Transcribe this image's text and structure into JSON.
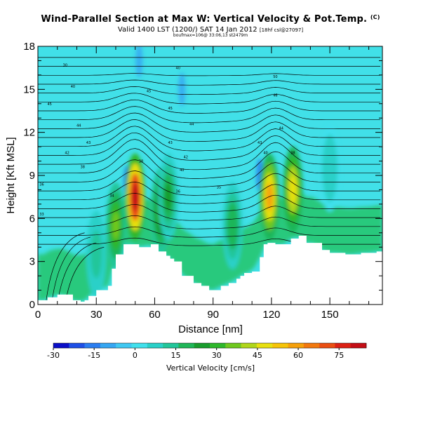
{
  "header": {
    "title": "Wind-Parallel Section at Max W: Vertical Velocity & Pot.Temp.",
    "title_mark": "(C)",
    "subtitle": "Valid 1400 LST (1200/) SAT 14 Jan 2012",
    "subtitle_note": "[18hf csl@27097]",
    "subtitle2": "boufmax=106@ 33:06,13 st2479m"
  },
  "chart_data": {
    "type": "heatmap",
    "xlabel": "Distance [nm]",
    "ylabel": "Height [Kft MSL]",
    "xlim": [
      0,
      177
    ],
    "ylim": [
      0,
      18
    ],
    "x_ticks": [
      0,
      30,
      60,
      90,
      120,
      150
    ],
    "y_ticks": [
      0,
      3,
      6,
      9,
      12,
      15,
      18
    ],
    "grid": false,
    "terrain": {
      "x": [
        0,
        4,
        5,
        10,
        13,
        18,
        22,
        24,
        26,
        30,
        36,
        38,
        40,
        44,
        48,
        52,
        58,
        62,
        66,
        68,
        70,
        74,
        76,
        80,
        84,
        88,
        90,
        94,
        98,
        102,
        104,
        106,
        110,
        114,
        116,
        118,
        122,
        126,
        130,
        134,
        138,
        142,
        146,
        150,
        154,
        158,
        162,
        166,
        170,
        174,
        177
      ],
      "height_kft": [
        0.3,
        0.3,
        0.5,
        0.7,
        0.7,
        0.3,
        0.2,
        0.3,
        0.6,
        1.0,
        1.3,
        2.5,
        3.5,
        4.2,
        4.2,
        4.0,
        4.2,
        3.7,
        3.4,
        3.2,
        3.0,
        2.0,
        2.0,
        1.5,
        1.3,
        1.0,
        1.0,
        1.3,
        1.5,
        1.8,
        2.0,
        2.2,
        2.3,
        3.3,
        4.2,
        4.3,
        4.2,
        4.2,
        4.6,
        4.8,
        4.3,
        4.3,
        3.8,
        3.6,
        3.6,
        3.5,
        3.5,
        3.6,
        3.6,
        3.7,
        3.7
      ]
    },
    "updrafts": [
      {
        "x": 50,
        "z": 7.5,
        "peak_cms": 80
      },
      {
        "x": 40,
        "z": 5.5,
        "peak_cms": 35
      },
      {
        "x": 63,
        "z": 6.5,
        "peak_cms": 30
      },
      {
        "x": 67,
        "z": 7.5,
        "peak_cms": 25
      },
      {
        "x": 119,
        "z": 7.5,
        "peak_cms": 58
      },
      {
        "x": 131,
        "z": 8.0,
        "peak_cms": 50
      },
      {
        "x": 100,
        "z": 5.5,
        "peak_cms": 20
      },
      {
        "x": 150,
        "z": 9.5,
        "peak_cms": 10
      },
      {
        "x": 30,
        "z": 3.5,
        "peak_cms": 15
      }
    ],
    "downdrafts": [
      {
        "x": 46,
        "z": 8.5,
        "min_cms": -20
      },
      {
        "x": 114,
        "z": 9.0,
        "min_cms": -18
      },
      {
        "x": 52,
        "z": 17.0,
        "min_cms": -12
      },
      {
        "x": 74,
        "z": 15.0,
        "min_cms": -8
      }
    ],
    "colorbar": {
      "title": "Vertical Velocity [cm/s]",
      "tick_labels": [
        "-30",
        "-15",
        "0",
        "15",
        "30",
        "45",
        "60",
        "75"
      ],
      "tick_values": [
        -30,
        -15,
        0,
        15,
        30,
        45,
        60,
        75
      ],
      "range": [
        -30,
        85
      ],
      "colors": [
        "#0b0fc8",
        "#1e4fe6",
        "#2a7df0",
        "#35a6f2",
        "#3fc8f2",
        "#40e0ec",
        "#29d0c8",
        "#22c69a",
        "#1fb658",
        "#189c2c",
        "#2eb72a",
        "#6fc81e",
        "#b0d61a",
        "#e8e010",
        "#f6c408",
        "#f6a00a",
        "#f2780e",
        "#ea4e12",
        "#dc2014",
        "#c40e16"
      ]
    },
    "theta_contours": {
      "labels": [
        {
          "text": "30",
          "x": 14,
          "z": 16.7
        },
        {
          "text": "40",
          "x": 18,
          "z": 15.2
        },
        {
          "text": "45",
          "x": 6,
          "z": 14.0
        },
        {
          "text": "44",
          "x": 21,
          "z": 12.5
        },
        {
          "text": "43",
          "x": 26,
          "z": 11.3
        },
        {
          "text": "42",
          "x": 15,
          "z": 10.6
        },
        {
          "text": "38",
          "x": 23,
          "z": 9.6
        },
        {
          "text": "36",
          "x": 2,
          "z": 8.4
        },
        {
          "text": "33",
          "x": 2,
          "z": 6.3
        },
        {
          "text": "40",
          "x": 72,
          "z": 16.5
        },
        {
          "text": "45",
          "x": 57,
          "z": 14.9
        },
        {
          "text": "45",
          "x": 68,
          "z": 13.7
        },
        {
          "text": "44",
          "x": 79,
          "z": 12.6
        },
        {
          "text": "43",
          "x": 68,
          "z": 11.3
        },
        {
          "text": "42",
          "x": 76,
          "z": 10.3
        },
        {
          "text": "40",
          "x": 74,
          "z": 9.4
        },
        {
          "text": "38",
          "x": 53,
          "z": 10.0
        },
        {
          "text": "36",
          "x": 72,
          "z": 7.9
        },
        {
          "text": "35",
          "x": 93,
          "z": 8.2
        },
        {
          "text": "34",
          "x": 38,
          "z": 7.6
        },
        {
          "text": "50",
          "x": 122,
          "z": 15.9
        },
        {
          "text": "46",
          "x": 122,
          "z": 14.6
        },
        {
          "text": "44",
          "x": 125,
          "z": 12.3
        },
        {
          "text": "43",
          "x": 114,
          "z": 11.3
        },
        {
          "text": "40",
          "x": 117,
          "z": 10.6
        },
        {
          "text": "38",
          "x": 131,
          "z": 10.6
        }
      ]
    }
  }
}
